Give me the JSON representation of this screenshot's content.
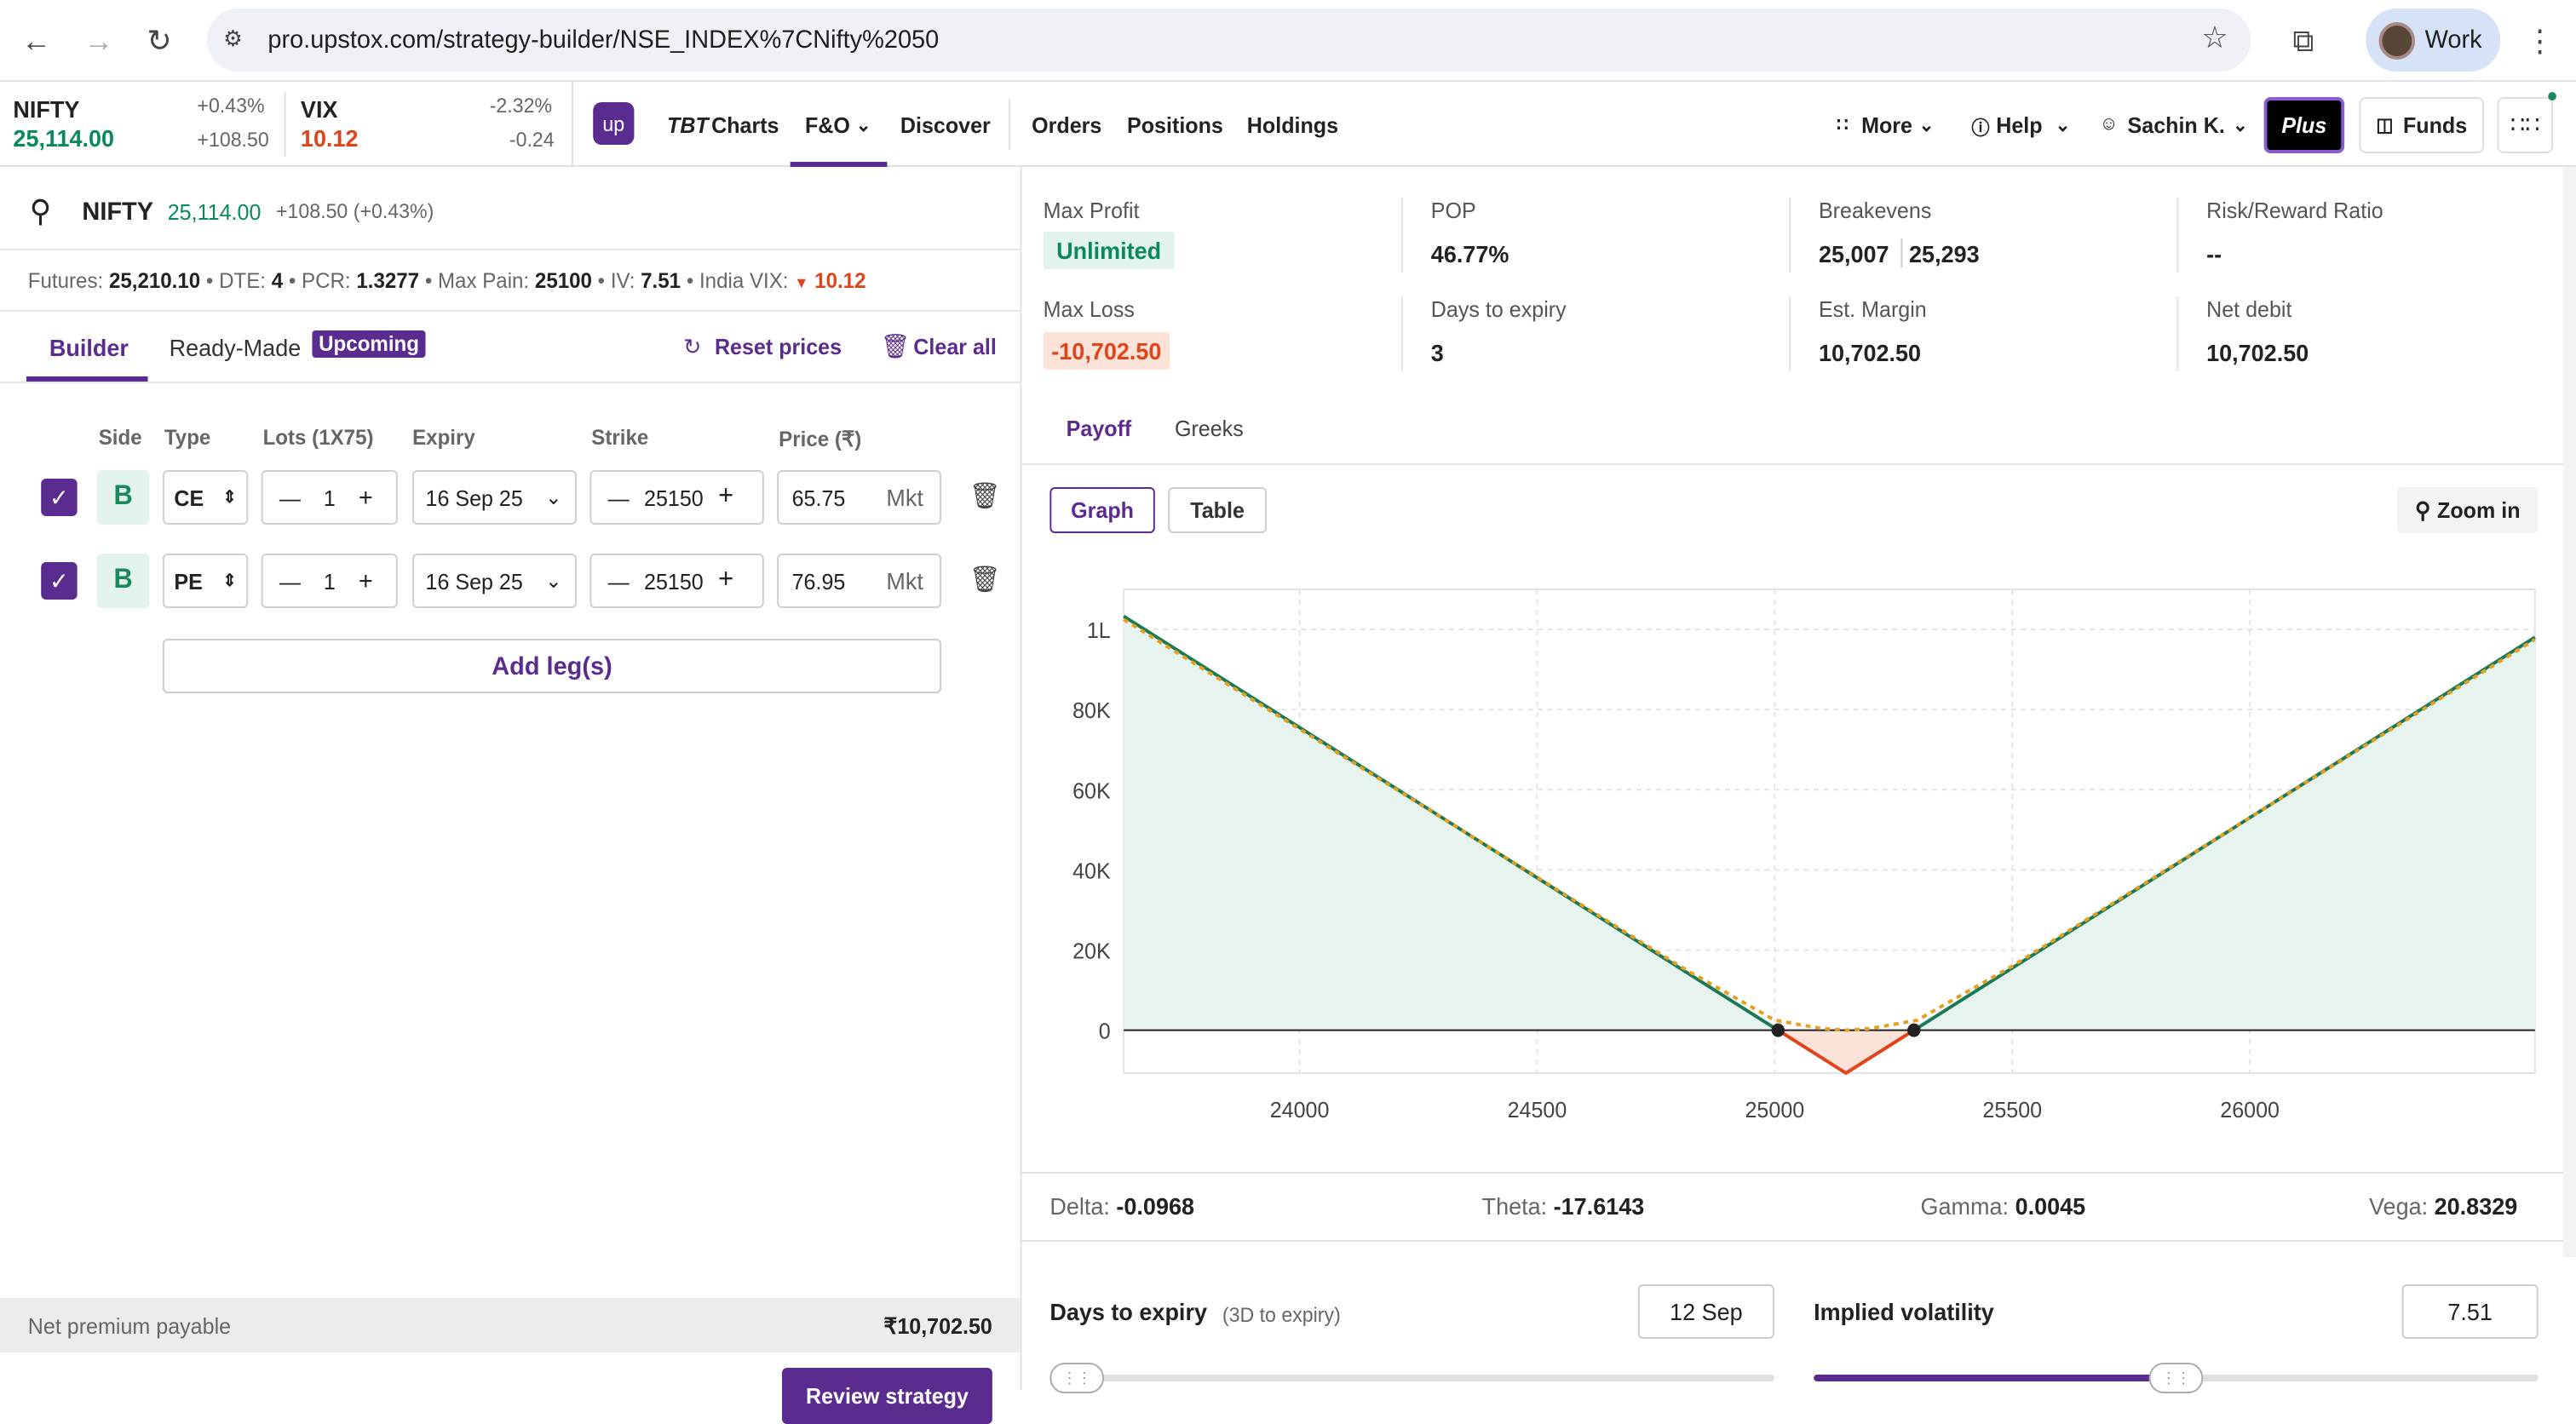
{
  "browser": {
    "url": "pro.upstox.com/strategy-builder/NSE_INDEX%7CNifty%2050",
    "profile": "Work"
  },
  "tickers": [
    {
      "name": "NIFTY",
      "value": "25,114.00",
      "pct": "+0.43%",
      "abs": "+108.50"
    },
    {
      "name": "VIX",
      "value": "10.12",
      "pct": "-2.32%",
      "abs": "-0.24"
    }
  ],
  "nav": {
    "logo": "up",
    "tbt": "TBT",
    "charts": "Charts",
    "fno": "F&O",
    "discover": "Discover",
    "orders": "Orders",
    "positions": "Positions",
    "holdings": "Holdings",
    "more": "More",
    "help": "Help",
    "user": "Sachin K.",
    "plus": "Plus",
    "funds": "Funds"
  },
  "instrument": {
    "name": "NIFTY",
    "ltp": "25,114.00",
    "change": "+108.50 (+0.43%)"
  },
  "metrics": {
    "futures_label": "Futures:",
    "futures": "25,210.10",
    "dte_label": "DTE:",
    "dte": "4",
    "pcr_label": "PCR:",
    "pcr": "1.3277",
    "maxpain_label": "Max Pain:",
    "maxpain": "25100",
    "iv_label": "IV:",
    "iv": "7.51",
    "vix_label": "India VIX:",
    "vix": "10.12"
  },
  "builder_tabs": {
    "builder": "Builder",
    "readymade": "Ready-Made",
    "badge": "Upcoming",
    "reset": "Reset prices",
    "clear": "Clear all"
  },
  "table_headers": {
    "side": "Side",
    "type": "Type",
    "lots": "Lots (1X75)",
    "expiry": "Expiry",
    "strike": "Strike",
    "price": "Price (₹)"
  },
  "legs": [
    {
      "side": "B",
      "type": "CE",
      "lots": "1",
      "expiry": "16 Sep 25",
      "strike": "25150",
      "price": "65.75",
      "mkt": "Mkt"
    },
    {
      "side": "B",
      "type": "PE",
      "lots": "1",
      "expiry": "16 Sep 25",
      "strike": "25150",
      "price": "76.95",
      "mkt": "Mkt"
    }
  ],
  "add_leg": "Add leg(s)",
  "footer": {
    "label": "Net premium payable",
    "value": "₹10,702.50",
    "review": "Review strategy"
  },
  "stats": {
    "max_profit_label": "Max Profit",
    "max_profit": "Unlimited",
    "pop_label": "POP",
    "pop": "46.77%",
    "breakevens_label": "Breakevens",
    "be1": "25,007",
    "be2": "25,293",
    "rr_label": "Risk/Reward Ratio",
    "rr": "--",
    "max_loss_label": "Max Loss",
    "max_loss": "-10,702.50",
    "dte_label": "Days to expiry",
    "dte": "3",
    "margin_label": "Est. Margin",
    "margin": "10,702.50",
    "netdebit_label": "Net debit",
    "netdebit": "10,702.50"
  },
  "chart_tabs": {
    "payoff": "Payoff",
    "greeks": "Greeks",
    "graph": "Graph",
    "table": "Table",
    "zoom": "Zoom in"
  },
  "chart_data": {
    "type": "line",
    "title": "",
    "xlabel": "",
    "ylabel": "",
    "xlim": [
      23630,
      26600
    ],
    "ylim": [
      -10702.5,
      110000
    ],
    "x_ticks": [
      24000,
      24500,
      25000,
      25500,
      26000
    ],
    "x_tick_labels": [
      "24000",
      "24500",
      "25000",
      "25500",
      "26000"
    ],
    "y_ticks": [
      0,
      20000,
      40000,
      60000,
      80000,
      100000
    ],
    "y_tick_labels": [
      "0",
      "20K",
      "40K",
      "60K",
      "80K",
      "1L"
    ],
    "grid": true,
    "series": [
      {
        "name": "",
        "color": "#1a7a56",
        "x": [
          23630,
          25150,
          26600
        ],
        "y": [
          103297.5,
          -10702.5,
          98047.5
        ]
      },
      {
        "name": "",
        "color": "#e5a020",
        "dashed": true,
        "x": [
          23630,
          24800,
          25000,
          25100,
          25150,
          25200,
          25300,
          25500,
          26600
        ],
        "y": [
          102500,
          16000,
          2500,
          400,
          0,
          400,
          2500,
          16000,
          97500
        ]
      }
    ],
    "breakeven_points": [
      25007,
      25293
    ],
    "colors": {
      "profit_fill": "#e6f3ee",
      "loss_fill": "#fbe3da",
      "loss_line": "#e0441a"
    }
  },
  "greeks": {
    "delta_label": "Delta:",
    "delta": "-0.0968",
    "theta_label": "Theta:",
    "theta": "-17.6143",
    "gamma_label": "Gamma:",
    "gamma": "0.0045",
    "vega_label": "Vega:",
    "vega": "20.8329"
  },
  "sliders": {
    "dte_label": "Days to expiry",
    "dte_sub": "(3D to expiry)",
    "dte_value": "12 Sep",
    "dte_level": 0.0,
    "iv_label": "Implied volatility",
    "iv_value": "7.51",
    "iv_level": 0.5
  },
  "colors": {
    "brand": "#5b2c8f",
    "green": "#0a8a5a",
    "red": "#e0441a"
  }
}
